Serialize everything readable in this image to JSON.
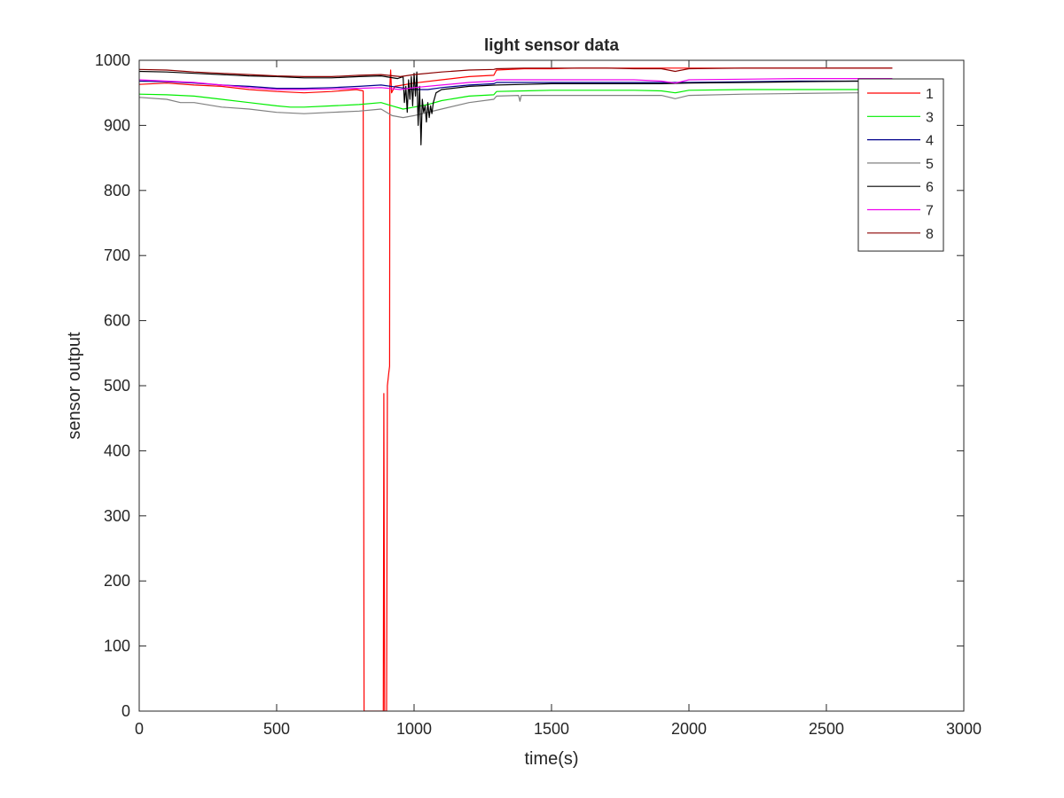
{
  "chart_data": {
    "type": "line",
    "title": "light sensor data",
    "xlabel": "time(s)",
    "ylabel": "sensor output",
    "xlim": [
      0,
      3000
    ],
    "ylim": [
      0,
      1000
    ],
    "xticks": [
      0,
      500,
      1000,
      1500,
      2000,
      2500,
      3000
    ],
    "yticks": [
      0,
      100,
      200,
      300,
      400,
      500,
      600,
      700,
      800,
      900,
      1000
    ],
    "grid": false,
    "legend_position": "top-right",
    "series": [
      {
        "name": "1",
        "color": "#ff0000",
        "points": [
          [
            0,
            963
          ],
          [
            100,
            965
          ],
          [
            200,
            962
          ],
          [
            300,
            960
          ],
          [
            400,
            955
          ],
          [
            500,
            952
          ],
          [
            600,
            950
          ],
          [
            700,
            952
          ],
          [
            790,
            955
          ],
          [
            815,
            953
          ],
          [
            818,
            0
          ],
          [
            825,
            0
          ],
          [
            880,
            0
          ],
          [
            888,
            0
          ],
          [
            890,
            488
          ],
          [
            893,
            0
          ],
          [
            900,
            0
          ],
          [
            903,
            500
          ],
          [
            908,
            520
          ],
          [
            911,
            530
          ],
          [
            912,
            960
          ],
          [
            915,
            985
          ],
          [
            918,
            950
          ],
          [
            930,
            960
          ],
          [
            1000,
            965
          ],
          [
            1100,
            970
          ],
          [
            1200,
            975
          ],
          [
            1290,
            977
          ],
          [
            1300,
            985
          ],
          [
            1400,
            987
          ],
          [
            1500,
            987
          ],
          [
            1600,
            988
          ],
          [
            1700,
            988
          ],
          [
            1800,
            988
          ],
          [
            1900,
            988
          ],
          [
            2000,
            988
          ],
          [
            2200,
            988
          ],
          [
            2400,
            988
          ],
          [
            2600,
            988
          ],
          [
            2740,
            988
          ]
        ]
      },
      {
        "name": "3",
        "color": "#00ee00",
        "points": [
          [
            0,
            948
          ],
          [
            100,
            947
          ],
          [
            200,
            945
          ],
          [
            300,
            940
          ],
          [
            400,
            935
          ],
          [
            500,
            930
          ],
          [
            550,
            928
          ],
          [
            600,
            928
          ],
          [
            700,
            930
          ],
          [
            800,
            932
          ],
          [
            880,
            935
          ],
          [
            920,
            930
          ],
          [
            960,
            925
          ],
          [
            1000,
            928
          ],
          [
            1050,
            932
          ],
          [
            1100,
            938
          ],
          [
            1200,
            945
          ],
          [
            1290,
            947
          ],
          [
            1300,
            952
          ],
          [
            1400,
            953
          ],
          [
            1500,
            954
          ],
          [
            1600,
            954
          ],
          [
            1700,
            954
          ],
          [
            1800,
            954
          ],
          [
            1900,
            953
          ],
          [
            1950,
            950
          ],
          [
            2000,
            954
          ],
          [
            2200,
            955
          ],
          [
            2400,
            955
          ],
          [
            2600,
            955
          ],
          [
            2740,
            955
          ]
        ]
      },
      {
        "name": "4",
        "color": "#00008b",
        "points": [
          [
            0,
            968
          ],
          [
            100,
            967
          ],
          [
            200,
            965
          ],
          [
            300,
            962
          ],
          [
            400,
            960
          ],
          [
            500,
            957
          ],
          [
            600,
            957
          ],
          [
            700,
            958
          ],
          [
            800,
            960
          ],
          [
            880,
            962
          ],
          [
            950,
            958
          ],
          [
            1000,
            955
          ],
          [
            1050,
            955
          ],
          [
            1100,
            958
          ],
          [
            1200,
            962
          ],
          [
            1290,
            964
          ],
          [
            1300,
            966
          ],
          [
            1400,
            966
          ],
          [
            1500,
            966
          ],
          [
            1600,
            966
          ],
          [
            1700,
            966
          ],
          [
            1800,
            966
          ],
          [
            1900,
            966
          ],
          [
            2000,
            966
          ],
          [
            2200,
            967
          ],
          [
            2400,
            968
          ],
          [
            2600,
            968
          ],
          [
            2740,
            968
          ]
        ]
      },
      {
        "name": "5",
        "color": "#808080",
        "points": [
          [
            0,
            943
          ],
          [
            100,
            940
          ],
          [
            150,
            935
          ],
          [
            200,
            935
          ],
          [
            300,
            928
          ],
          [
            400,
            925
          ],
          [
            500,
            920
          ],
          [
            600,
            918
          ],
          [
            700,
            920
          ],
          [
            800,
            922
          ],
          [
            880,
            925
          ],
          [
            920,
            915
          ],
          [
            960,
            912
          ],
          [
            1000,
            915
          ],
          [
            1100,
            925
          ],
          [
            1200,
            935
          ],
          [
            1290,
            940
          ],
          [
            1300,
            945
          ],
          [
            1380,
            946
          ],
          [
            1385,
            937
          ],
          [
            1390,
            946
          ],
          [
            1500,
            946
          ],
          [
            1600,
            946
          ],
          [
            1700,
            946
          ],
          [
            1800,
            946
          ],
          [
            1900,
            946
          ],
          [
            1950,
            941
          ],
          [
            2000,
            946
          ],
          [
            2200,
            948
          ],
          [
            2400,
            949
          ],
          [
            2600,
            950
          ],
          [
            2740,
            950
          ]
        ]
      },
      {
        "name": "6",
        "color": "#000000",
        "points": [
          [
            0,
            983
          ],
          [
            100,
            982
          ],
          [
            200,
            980
          ],
          [
            300,
            978
          ],
          [
            400,
            976
          ],
          [
            500,
            975
          ],
          [
            600,
            973
          ],
          [
            700,
            973
          ],
          [
            800,
            975
          ],
          [
            880,
            976
          ],
          [
            940,
            972
          ],
          [
            960,
            975
          ],
          [
            965,
            935
          ],
          [
            970,
            960
          ],
          [
            975,
            920
          ],
          [
            980,
            970
          ],
          [
            985,
            940
          ],
          [
            990,
            975
          ],
          [
            995,
            930
          ],
          [
            1000,
            980
          ],
          [
            1005,
            945
          ],
          [
            1010,
            982
          ],
          [
            1015,
            900
          ],
          [
            1020,
            960
          ],
          [
            1025,
            870
          ],
          [
            1030,
            940
          ],
          [
            1035,
            920
          ],
          [
            1040,
            930
          ],
          [
            1045,
            905
          ],
          [
            1050,
            935
          ],
          [
            1055,
            912
          ],
          [
            1060,
            930
          ],
          [
            1065,
            918
          ],
          [
            1070,
            935
          ],
          [
            1080,
            950
          ],
          [
            1100,
            955
          ],
          [
            1200,
            960
          ],
          [
            1300,
            962
          ],
          [
            1400,
            963
          ],
          [
            1500,
            964
          ],
          [
            1600,
            964
          ],
          [
            1700,
            964
          ],
          [
            1800,
            964
          ],
          [
            1900,
            964
          ],
          [
            2000,
            965
          ],
          [
            2200,
            966
          ],
          [
            2400,
            967
          ],
          [
            2600,
            968
          ],
          [
            2740,
            968
          ]
        ]
      },
      {
        "name": "7",
        "color": "#ee00ee",
        "points": [
          [
            0,
            970
          ],
          [
            100,
            968
          ],
          [
            200,
            966
          ],
          [
            300,
            962
          ],
          [
            400,
            958
          ],
          [
            500,
            955
          ],
          [
            600,
            955
          ],
          [
            700,
            956
          ],
          [
            800,
            957
          ],
          [
            880,
            958
          ],
          [
            950,
            955
          ],
          [
            1000,
            958
          ],
          [
            1100,
            962
          ],
          [
            1200,
            966
          ],
          [
            1290,
            968
          ],
          [
            1300,
            970
          ],
          [
            1400,
            970
          ],
          [
            1500,
            970
          ],
          [
            1600,
            970
          ],
          [
            1700,
            970
          ],
          [
            1800,
            970
          ],
          [
            1900,
            968
          ],
          [
            1950,
            965
          ],
          [
            2000,
            970
          ],
          [
            2200,
            971
          ],
          [
            2400,
            972
          ],
          [
            2600,
            972
          ],
          [
            2740,
            972
          ]
        ]
      },
      {
        "name": "8",
        "color": "#8b0000",
        "points": [
          [
            0,
            986
          ],
          [
            100,
            985
          ],
          [
            200,
            982
          ],
          [
            300,
            980
          ],
          [
            400,
            978
          ],
          [
            500,
            976
          ],
          [
            600,
            975
          ],
          [
            700,
            975
          ],
          [
            800,
            977
          ],
          [
            880,
            978
          ],
          [
            950,
            975
          ],
          [
            1000,
            978
          ],
          [
            1100,
            982
          ],
          [
            1200,
            985
          ],
          [
            1290,
            986
          ],
          [
            1300,
            987
          ],
          [
            1400,
            988
          ],
          [
            1500,
            988
          ],
          [
            1600,
            988
          ],
          [
            1700,
            988
          ],
          [
            1800,
            987
          ],
          [
            1900,
            987
          ],
          [
            1950,
            983
          ],
          [
            2000,
            987
          ],
          [
            2200,
            988
          ],
          [
            2400,
            988
          ],
          [
            2600,
            988
          ],
          [
            2740,
            988
          ]
        ]
      }
    ]
  }
}
